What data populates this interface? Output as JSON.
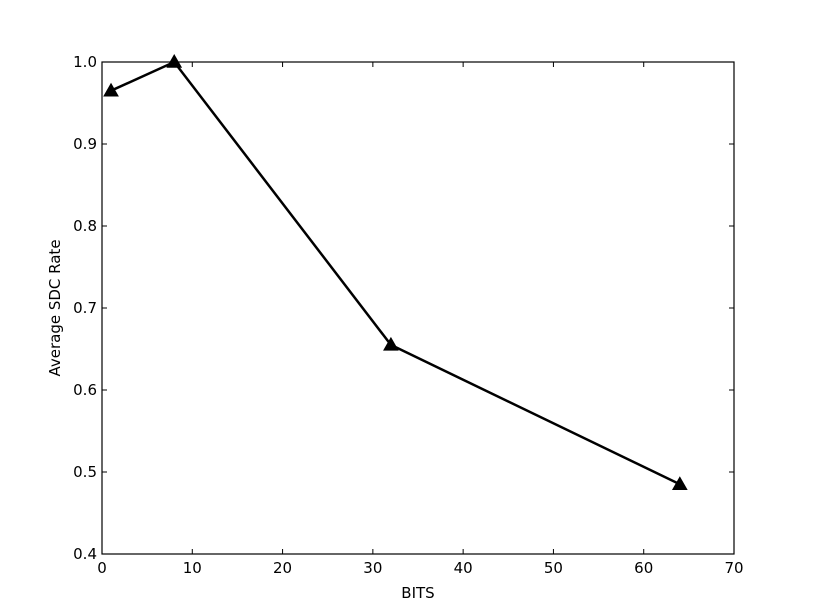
{
  "chart_data": {
    "type": "line",
    "xlabel": "BITS",
    "ylabel": "Average SDC Rate",
    "xlim": [
      0,
      70
    ],
    "ylim": [
      0.4,
      1.0
    ],
    "xticks": [
      0,
      10,
      20,
      30,
      40,
      50,
      60,
      70
    ],
    "yticks": [
      0.4,
      0.5,
      0.6,
      0.7,
      0.8,
      0.9,
      1.0
    ],
    "xtick_labels": [
      "0",
      "10",
      "20",
      "30",
      "40",
      "50",
      "60",
      "70"
    ],
    "ytick_labels": [
      "0.4",
      "0.5",
      "0.6",
      "0.7",
      "0.8",
      "0.9",
      "1.0"
    ],
    "grid": false,
    "series": [
      {
        "color": "#000000",
        "marker": "triangle",
        "x": [
          1,
          8,
          32,
          64
        ],
        "y": [
          0.965,
          1.0,
          0.655,
          0.485
        ]
      }
    ]
  }
}
